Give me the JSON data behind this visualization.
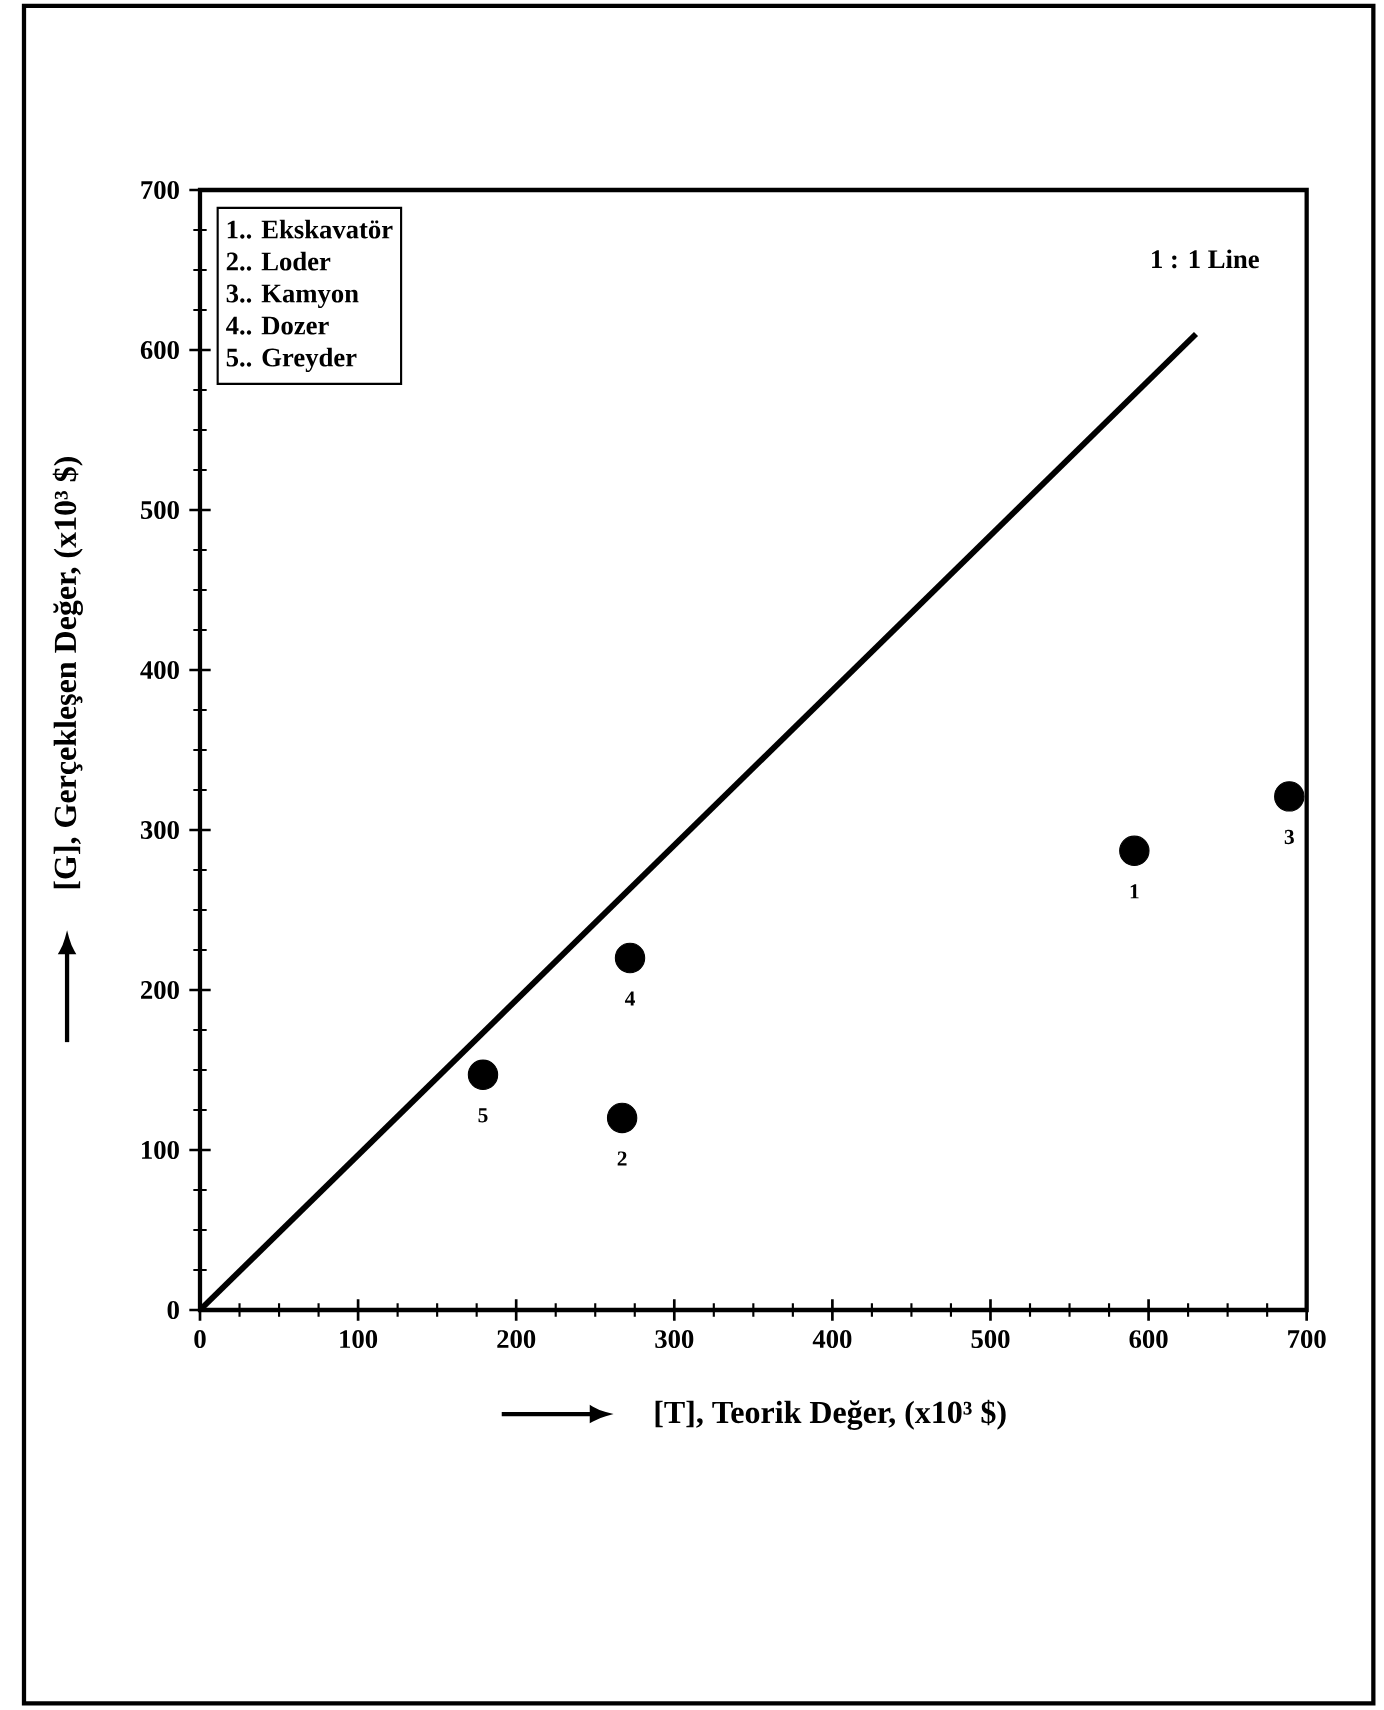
{
  "chart_data": {
    "type": "scatter",
    "xlabel": "[T], Teorik Değer, (x10³ $)",
    "ylabel": "[G], Gerçekleşen Değer, (x10³ $)",
    "xlim": [
      0,
      700
    ],
    "ylim": [
      0,
      700
    ],
    "xticks": [
      0,
      {
        "value": 25,
        "label": null
      },
      {
        "value": 50,
        "label": null
      },
      {
        "value": 75,
        "label": null
      },
      100,
      {
        "value": 125,
        "label": null
      },
      {
        "value": 150,
        "label": null
      },
      {
        "value": 175,
        "label": null
      },
      200,
      {
        "value": 225,
        "label": null
      },
      {
        "value": 250,
        "label": null
      },
      {
        "value": 275,
        "label": null
      },
      300,
      {
        "value": 325,
        "label": null
      },
      {
        "value": 350,
        "label": null
      },
      {
        "value": 375,
        "label": null
      },
      400,
      {
        "value": 425,
        "label": null
      },
      {
        "value": 450,
        "label": null
      },
      {
        "value": 475,
        "label": null
      },
      500,
      {
        "value": 525,
        "label": null
      },
      {
        "value": 550,
        "label": null
      },
      {
        "value": 575,
        "label": null
      },
      600,
      {
        "value": 625,
        "label": null
      },
      {
        "value": 650,
        "label": null
      },
      {
        "value": 675,
        "label": null
      },
      700
    ],
    "yticks": [
      0,
      {
        "value": 25,
        "label": null
      },
      {
        "value": 50,
        "label": null
      },
      {
        "value": 75,
        "label": null
      },
      100,
      {
        "value": 125,
        "label": null
      },
      {
        "value": 150,
        "label": null
      },
      {
        "value": 175,
        "label": null
      },
      200,
      {
        "value": 225,
        "label": null
      },
      {
        "value": 250,
        "label": null
      },
      {
        "value": 275,
        "label": null
      },
      300,
      {
        "value": 325,
        "label": null
      },
      {
        "value": 350,
        "label": null
      },
      {
        "value": 375,
        "label": null
      },
      400,
      {
        "value": 425,
        "label": null
      },
      {
        "value": 450,
        "label": null
      },
      {
        "value": 475,
        "label": null
      },
      500,
      {
        "value": 525,
        "label": null
      },
      {
        "value": 550,
        "label": null
      },
      {
        "value": 575,
        "label": null
      },
      600,
      {
        "value": 625,
        "label": null
      },
      {
        "value": 650,
        "label": null
      },
      {
        "value": 675,
        "label": null
      },
      700
    ],
    "grid": false,
    "legend": "top right",
    "annotations": [
      "1.. Ekskavatör",
      "2.. Loder",
      "3.. Kamyon",
      "4.. Dozer",
      "5.. Greyder",
      {
        "text": "1",
        "x": 591,
        "y": 287
      },
      {
        "text": "2",
        "x": 267,
        "y": 120
      },
      {
        "text": "3",
        "x": 689,
        "y": 321
      },
      {
        "text": "4",
        "x": 272,
        "y": 220
      },
      {
        "text": "5",
        "x": 179,
        "y": 147
      }
    ],
    "series": [
      {
        "type": "scatter",
        "color": "#000000",
        "marker": "circle",
        "x": [
          591,
          267,
          689,
          272,
          179
        ],
        "values": [
          287,
          120,
          321,
          220,
          147
        ]
      },
      {
        "type": "line",
        "name": "1 : 1 Line",
        "color": "#000000",
        "line_style": "solid",
        "x": [
          0,
          630
        ],
        "values": [
          0,
          610
        ]
      }
    ]
  }
}
